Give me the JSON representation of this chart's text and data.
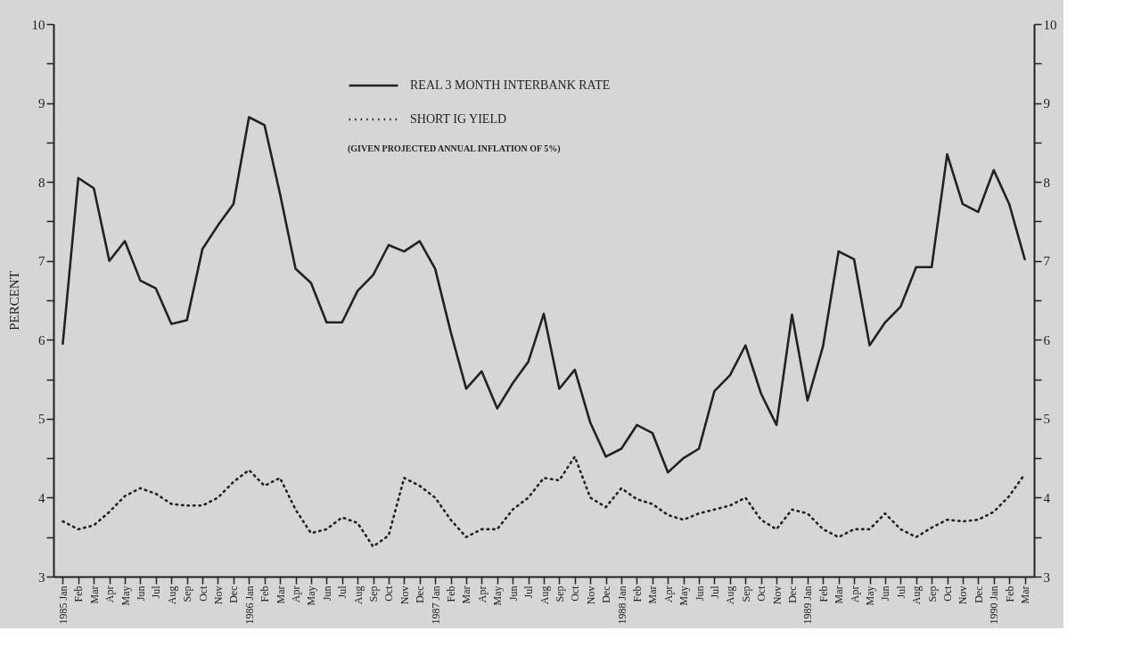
{
  "chart_data": {
    "type": "line",
    "ylabel": "PERCENT",
    "categories": [
      "1985 Jan",
      "Feb",
      "Mar",
      "Apr",
      "May",
      "Jun",
      "Jul",
      "Aug",
      "Sep",
      "Oct",
      "Nov",
      "Dec",
      "1986 Jan",
      "Feb",
      "Mar",
      "Apr",
      "May",
      "Jun",
      "Jul",
      "Aug",
      "Sep",
      "Oct",
      "Nov",
      "Dec",
      "1987 Jan",
      "Feb",
      "Mar",
      "Apr",
      "May",
      "Jun",
      "Jul",
      "Aug",
      "Sep",
      "Oct",
      "Nov",
      "Dec",
      "1988 Jan",
      "Feb",
      "Mar",
      "Apr",
      "May",
      "Jun",
      "Jul",
      "Aug",
      "Sep",
      "Oct",
      "Nov",
      "Dec",
      "1989 Jan",
      "Feb",
      "Mar",
      "Apr",
      "May",
      "Jun",
      "Jul",
      "Aug",
      "Sep",
      "Oct",
      "Nov",
      "Dec",
      "1990 Jan",
      "Feb",
      "Mar"
    ],
    "series": [
      {
        "name": "REAL 3 MONTH INTERBANK RATE",
        "color": "#222222",
        "line_style": "solid",
        "values": [
          5.95,
          8.05,
          7.92,
          7.0,
          7.25,
          6.75,
          6.65,
          6.2,
          6.25,
          7.15,
          7.45,
          7.72,
          8.82,
          8.72,
          7.85,
          6.9,
          6.72,
          6.22,
          6.22,
          6.62,
          6.82,
          7.2,
          7.12,
          7.25,
          6.9,
          6.1,
          5.38,
          5.6,
          5.13,
          5.45,
          5.72,
          6.33,
          5.38,
          5.62,
          4.95,
          4.52,
          4.62,
          4.92,
          4.82,
          4.32,
          4.5,
          4.62,
          5.35,
          5.55,
          5.93,
          5.32,
          4.92,
          6.32,
          5.23,
          5.92,
          7.12,
          7.02,
          5.93,
          6.22,
          6.42,
          6.92,
          6.92,
          8.35,
          7.72,
          7.62,
          8.15,
          7.72,
          7.02
        ]
      },
      {
        "name": "SHORT IG YIELD",
        "color": "#222222",
        "line_style": "dotted",
        "values": [
          3.7,
          3.6,
          3.65,
          3.82,
          4.02,
          4.12,
          4.05,
          3.92,
          3.9,
          3.9,
          4.0,
          4.2,
          4.35,
          4.15,
          4.25,
          3.85,
          3.55,
          3.6,
          3.75,
          3.68,
          3.38,
          3.52,
          4.25,
          4.15,
          4.0,
          3.72,
          3.5,
          3.6,
          3.6,
          3.85,
          4.0,
          4.25,
          4.22,
          4.52,
          4.0,
          3.88,
          4.12,
          3.98,
          3.92,
          3.78,
          3.72,
          3.8,
          3.85,
          3.9,
          4.0,
          3.72,
          3.6,
          3.85,
          3.8,
          3.6,
          3.5,
          3.6,
          3.6,
          3.8,
          3.6,
          3.5,
          3.62,
          3.72,
          3.7,
          3.72,
          3.82,
          4.02,
          4.3
        ]
      }
    ],
    "annotations": [
      "(GIVEN PROJECTED ANNUAL INFLATION OF 5%)"
    ],
    "ylim": [
      3,
      10
    ],
    "yticks": [
      3,
      {
        "value": 3.5,
        "label": null
      },
      4,
      {
        "value": 4.5,
        "label": null
      },
      5,
      {
        "value": 5.5,
        "label": null
      },
      6,
      {
        "value": 6.5,
        "label": null
      },
      7,
      {
        "value": 7.5,
        "label": null
      },
      8,
      {
        "value": 8.5,
        "label": null
      },
      9,
      {
        "value": 9.5,
        "label": null
      },
      10
    ],
    "y2lim": [
      3,
      10
    ],
    "y2ticks": [
      3,
      {
        "value": 3.5,
        "label": null
      },
      4,
      {
        "value": 4.5,
        "label": null
      },
      5,
      {
        "value": 5.5,
        "label": null
      },
      6,
      {
        "value": 6.5,
        "label": null
      },
      7,
      {
        "value": 7.5,
        "label": null
      },
      8,
      {
        "value": 8.5,
        "label": null
      },
      9,
      {
        "value": 9.5,
        "label": null
      },
      10
    ],
    "legend": "top",
    "grid": false,
    "marker": "none"
  }
}
